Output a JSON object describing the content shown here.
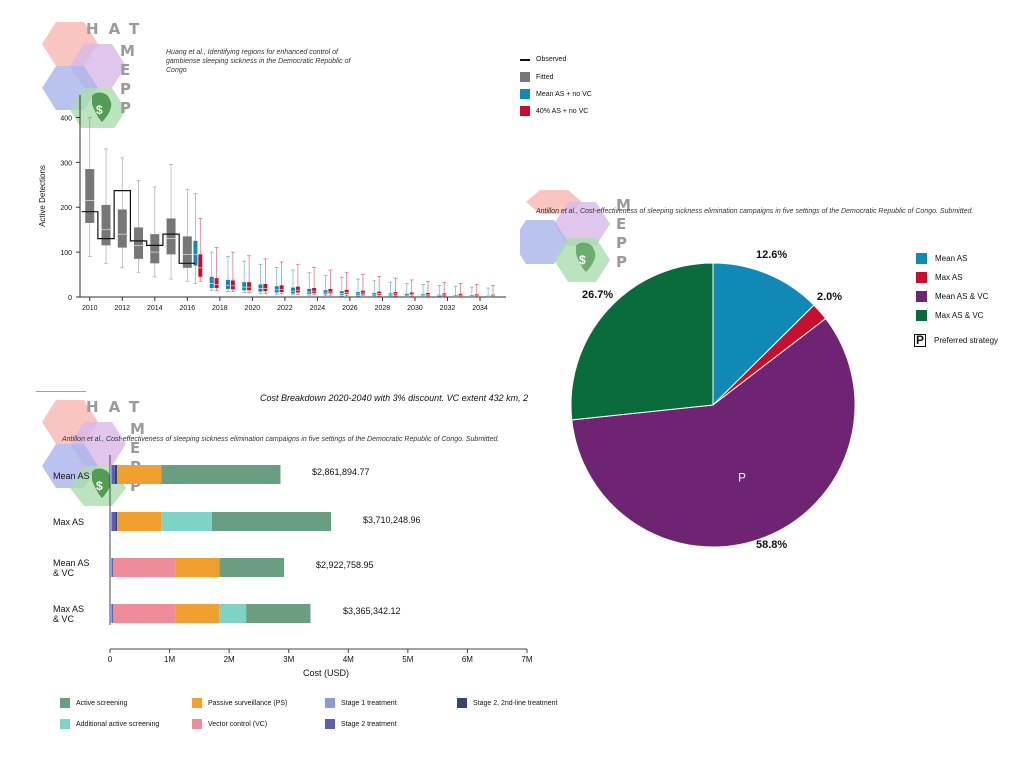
{
  "colors": {
    "observed": "#111111",
    "fitted": "#777777",
    "mean_as": "#1189b6",
    "max_as": "#c8102e",
    "mean_as_vc": "#6e2472",
    "max_as_vc": "#0a6b3c",
    "active_screening": "#6a9e80",
    "passive_surveillance": "#f0a030",
    "stage1": "#8e9bd8",
    "stage2_2nd": "#334477",
    "additional_as": "#7ed3c6",
    "vector_control": "#ef8c9c",
    "stage2": "#5d5fb0"
  },
  "logos": [
    {
      "letters": [
        "H",
        "A",
        "T"
      ],
      "side": [
        "M",
        "E",
        "P",
        "P"
      ]
    },
    {
      "letters": [],
      "side": [
        "M",
        "E",
        "P",
        "P"
      ]
    },
    {
      "letters": [
        "H",
        "A",
        "T"
      ],
      "side": [
        "M",
        "E",
        "P",
        "P"
      ]
    }
  ],
  "chart_data": [
    {
      "type": "box",
      "citation": "Huang et al., Identifying regions for enhanced control of gambiense sleeping sickness in the Democratic Republic of Congo",
      "ylabel": "Active Detections",
      "xlabel": "",
      "ylim": [
        0,
        450
      ],
      "yticks": [
        "0",
        "100",
        "200",
        "300",
        "400"
      ],
      "xticks": [
        "2010",
        "2012",
        "2014",
        "2016",
        "2018",
        "2020",
        "2022",
        "2024",
        "2026",
        "2028",
        "2030",
        "2032",
        "2034"
      ],
      "legend": [
        "Observed",
        "Fitted",
        "Mean AS + no VC",
        "40% AS + no VC"
      ],
      "observed": [
        {
          "x": 2010,
          "y": 190
        },
        {
          "x": 2011,
          "y": 130
        },
        {
          "x": 2012,
          "y": 237
        },
        {
          "x": 2013,
          "y": 125
        },
        {
          "x": 2014,
          "y": 115
        },
        {
          "x": 2015,
          "y": 140
        },
        {
          "x": 2016,
          "y": 75
        }
      ],
      "fitted": [
        {
          "x": 2010,
          "lo": 90,
          "q1": 165,
          "med": 215,
          "q3": 285,
          "hi": 400
        },
        {
          "x": 2011,
          "lo": 75,
          "q1": 115,
          "med": 150,
          "q3": 205,
          "hi": 330
        },
        {
          "x": 2012,
          "lo": 65,
          "q1": 110,
          "med": 140,
          "q3": 195,
          "hi": 310
        },
        {
          "x": 2013,
          "lo": 55,
          "q1": 85,
          "med": 115,
          "q3": 155,
          "hi": 260
        },
        {
          "x": 2014,
          "lo": 45,
          "q1": 75,
          "med": 100,
          "q3": 140,
          "hi": 245
        },
        {
          "x": 2015,
          "lo": 40,
          "q1": 95,
          "med": 130,
          "q3": 175,
          "hi": 295
        },
        {
          "x": 2016,
          "lo": 35,
          "q1": 65,
          "med": 95,
          "q3": 135,
          "hi": 240
        }
      ],
      "mean_as_no_vc": [
        {
          "x": 2016.5,
          "lo": 30,
          "q1": 70,
          "med": 95,
          "q3": 125,
          "hi": 230
        },
        {
          "x": 2017.5,
          "lo": 15,
          "q1": 20,
          "med": 30,
          "q3": 45,
          "hi": 100
        },
        {
          "x": 2018.5,
          "lo": 12,
          "q1": 18,
          "med": 26,
          "q3": 38,
          "hi": 90
        },
        {
          "x": 2019.5,
          "lo": 10,
          "q1": 15,
          "med": 22,
          "q3": 33,
          "hi": 80
        },
        {
          "x": 2020.5,
          "lo": 8,
          "q1": 12,
          "med": 19,
          "q3": 28,
          "hi": 72
        },
        {
          "x": 2021.5,
          "lo": 6,
          "q1": 10,
          "med": 16,
          "q3": 24,
          "hi": 66
        },
        {
          "x": 2022.5,
          "lo": 5,
          "q1": 8,
          "med": 13,
          "q3": 21,
          "hi": 60
        },
        {
          "x": 2023.5,
          "lo": 4,
          "q1": 7,
          "med": 11,
          "q3": 18,
          "hi": 54
        },
        {
          "x": 2024.5,
          "lo": 3,
          "q1": 6,
          "med": 9,
          "q3": 15,
          "hi": 48
        },
        {
          "x": 2025.5,
          "lo": 2,
          "q1": 5,
          "med": 8,
          "q3": 13,
          "hi": 44
        },
        {
          "x": 2026.5,
          "lo": 2,
          "q1": 4,
          "med": 7,
          "q3": 11,
          "hi": 40
        },
        {
          "x": 2027.5,
          "lo": 1,
          "q1": 3,
          "med": 6,
          "q3": 9,
          "hi": 36
        },
        {
          "x": 2028.5,
          "lo": 1,
          "q1": 3,
          "med": 5,
          "q3": 8,
          "hi": 33
        },
        {
          "x": 2029.5,
          "lo": 0,
          "q1": 2,
          "med": 4,
          "q3": 7,
          "hi": 30
        },
        {
          "x": 2030.5,
          "lo": 0,
          "q1": 2,
          "med": 3,
          "q3": 6,
          "hi": 28
        },
        {
          "x": 2031.5,
          "lo": 0,
          "q1": 1,
          "med": 3,
          "q3": 5,
          "hi": 26
        },
        {
          "x": 2032.5,
          "lo": 0,
          "q1": 1,
          "med": 2,
          "q3": 4,
          "hi": 24
        },
        {
          "x": 2033.5,
          "lo": 0,
          "q1": 1,
          "med": 2,
          "q3": 4,
          "hi": 22
        },
        {
          "x": 2034.5,
          "lo": 0,
          "q1": 1,
          "med": 2,
          "q3": 3,
          "hi": 20
        }
      ],
      "as40_no_vc": [
        {
          "x": 2016.8,
          "lo": 35,
          "q1": 45,
          "med": 65,
          "q3": 95,
          "hi": 175
        },
        {
          "x": 2017.8,
          "lo": 14,
          "q1": 20,
          "med": 28,
          "q3": 42,
          "hi": 110
        },
        {
          "x": 2018.8,
          "lo": 12,
          "q1": 17,
          "med": 25,
          "q3": 37,
          "hi": 100
        },
        {
          "x": 2019.8,
          "lo": 10,
          "q1": 15,
          "med": 22,
          "q3": 33,
          "hi": 92
        },
        {
          "x": 2020.8,
          "lo": 8,
          "q1": 13,
          "med": 19,
          "q3": 29,
          "hi": 85
        },
        {
          "x": 2021.8,
          "lo": 7,
          "q1": 11,
          "med": 17,
          "q3": 26,
          "hi": 78
        },
        {
          "x": 2022.8,
          "lo": 6,
          "q1": 10,
          "med": 15,
          "q3": 23,
          "hi": 72
        },
        {
          "x": 2023.8,
          "lo": 5,
          "q1": 9,
          "med": 13,
          "q3": 20,
          "hi": 66
        },
        {
          "x": 2024.8,
          "lo": 4,
          "q1": 8,
          "med": 11,
          "q3": 18,
          "hi": 60
        },
        {
          "x": 2025.8,
          "lo": 3,
          "q1": 7,
          "med": 10,
          "q3": 16,
          "hi": 55
        },
        {
          "x": 2026.8,
          "lo": 3,
          "q1": 6,
          "med": 9,
          "q3": 14,
          "hi": 50
        },
        {
          "x": 2027.8,
          "lo": 2,
          "q1": 5,
          "med": 8,
          "q3": 12,
          "hi": 46
        },
        {
          "x": 2028.8,
          "lo": 2,
          "q1": 4,
          "med": 7,
          "q3": 11,
          "hi": 42
        },
        {
          "x": 2029.8,
          "lo": 1,
          "q1": 4,
          "med": 6,
          "q3": 10,
          "hi": 38
        },
        {
          "x": 2030.8,
          "lo": 1,
          "q1": 3,
          "med": 5,
          "q3": 9,
          "hi": 35
        },
        {
          "x": 2031.8,
          "lo": 1,
          "q1": 3,
          "med": 5,
          "q3": 8,
          "hi": 32
        },
        {
          "x": 2032.8,
          "lo": 0,
          "q1": 2,
          "med": 4,
          "q3": 7,
          "hi": 30
        },
        {
          "x": 2033.8,
          "lo": 0,
          "q1": 2,
          "med": 4,
          "q3": 6,
          "hi": 28
        },
        {
          "x": 2034.8,
          "lo": 0,
          "q1": 2,
          "med": 3,
          "q3": 5,
          "hi": 26
        }
      ]
    },
    {
      "type": "pie",
      "citation": "Antillon et al., Cost-effectiveness of sleeping sickness elimination campaigns in five settings of the Democratic Republic of Congo. Submitted.",
      "slices": [
        {
          "name": "Mean AS",
          "value": 12.6,
          "label": "12.6%",
          "color_key": "mean_as"
        },
        {
          "name": "Max AS",
          "value": 2.0,
          "label": "2.0%",
          "color_key": "max_as"
        },
        {
          "name": "Mean AS & VC",
          "value": 58.8,
          "label": "58.8%",
          "color_key": "mean_as_vc",
          "marker": "P"
        },
        {
          "name": "Max AS & VC",
          "value": 26.7,
          "label": "26.7%",
          "color_key": "max_as_vc"
        }
      ],
      "legend": [
        "Mean AS",
        "Max AS",
        "Mean AS & VC",
        "Max AS & VC"
      ],
      "preferred_label": "Preferred strategy",
      "preferred_marker": "P"
    },
    {
      "type": "stacked-bar-horizontal",
      "title": "Cost Breakdown 2020-2040 with 3% discount. VC extent 432 km, 2",
      "citation": "Antillon et al., Cost-effectiveness of sleeping sickness elimination campaigns in five settings of the Democratic Republic of Congo. Submitted.",
      "xlabel": "Cost (USD)",
      "xlim": [
        0,
        7000000
      ],
      "xticks": [
        "0",
        "1M",
        "2M",
        "3M",
        "4M",
        "5M",
        "6M",
        "7M"
      ],
      "categories": [
        "Mean AS",
        "Max AS",
        "Mean AS\n& VC",
        "Max AS\n& VC"
      ],
      "totals": [
        "$2,861,894.77",
        "$3,710,248.96",
        "$2,922,758.95",
        "$3,365,342.12"
      ],
      "series": [
        {
          "name": "Stage 1 treatment",
          "color_key": "stage1",
          "values": [
            30000,
            30000,
            30000,
            30000
          ]
        },
        {
          "name": "Stage 2 treatment",
          "color_key": "stage2",
          "values": [
            50000,
            60000,
            15000,
            15000
          ]
        },
        {
          "name": "Stage 2, 2nd-line treatment",
          "color_key": "stage2_2nd",
          "values": [
            40000,
            30000,
            10000,
            10000
          ]
        },
        {
          "name": "Vector control (VC)",
          "color_key": "vector_control",
          "values": [
            0,
            0,
            1050000,
            1050000
          ]
        },
        {
          "name": "Passive surveillance (PS)",
          "color_key": "passive_surveillance",
          "values": [
            740000,
            740000,
            730000,
            730000
          ]
        },
        {
          "name": "Additional active screening",
          "color_key": "additional_as",
          "values": [
            0,
            850000,
            0,
            450000
          ]
        },
        {
          "name": "Active screening",
          "color_key": "active_screening",
          "values": [
            2001894.77,
            2000248.96,
            1087758.95,
            1080342.12
          ]
        }
      ],
      "legend_order": [
        [
          "Active screening",
          "Passive surveillance (PS)",
          "Stage 1 treatment",
          "Stage 2, 2nd-line treatment"
        ],
        [
          "Additional active screening",
          "Vector control (VC)",
          "Stage 2 treatment"
        ]
      ]
    }
  ]
}
